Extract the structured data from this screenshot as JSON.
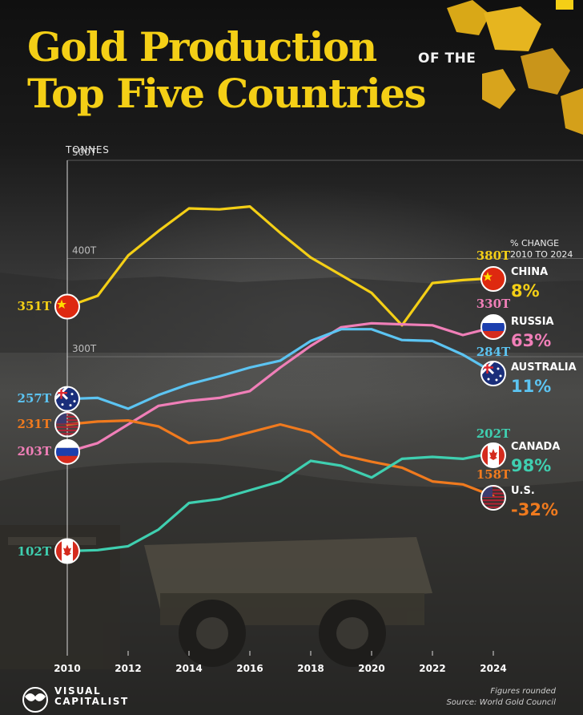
{
  "header": {
    "title_line1": "Gold Production",
    "title_line2": "Top Five Countries",
    "title_connector": "OF THE"
  },
  "unit_label": "TONNES",
  "pct_header": [
    "% CHANGE",
    "2010 TO 2024"
  ],
  "footnote": [
    "Figures rounded",
    "Source: World Gold Council"
  ],
  "brand": {
    "line1": "VISUAL",
    "line2": "CAPITALIST"
  },
  "chart_data": {
    "type": "line",
    "x": [
      2010,
      2011,
      2012,
      2013,
      2014,
      2015,
      2016,
      2017,
      2018,
      2019,
      2020,
      2021,
      2022,
      2023,
      2024
    ],
    "xticks": [
      2010,
      2012,
      2014,
      2016,
      2018,
      2020,
      2022,
      2024
    ],
    "xtick_labels": [
      "2010",
      "2012",
      "2014",
      "2016",
      "2018",
      "2020",
      "2022",
      "2024"
    ],
    "ylim": [
      100,
      500
    ],
    "yticks": [
      300,
      400,
      500
    ],
    "ytick_labels": [
      "300T",
      "400T",
      "500T"
    ],
    "grid": true,
    "series": [
      {
        "name": "CHINA",
        "color": "#f4cf16",
        "flag": "china-flag",
        "values": [
          351,
          362,
          403,
          428,
          451,
          450,
          453,
          426,
          401,
          383,
          365,
          332,
          375,
          378,
          380
        ],
        "start_label": "351T",
        "end_label": "380T",
        "change": "8%"
      },
      {
        "name": "RUSSIA",
        "color": "#f07fb8",
        "flag": "russia-flag",
        "values": [
          203,
          212,
          231,
          250,
          255,
          258,
          265,
          289,
          311,
          330,
          334,
          333,
          332,
          322,
          330
        ],
        "start_label": "203T",
        "end_label": "330T",
        "change": "63%"
      },
      {
        "name": "AUSTRALIA",
        "color": "#5cc4f2",
        "flag": "australia-flag",
        "values": [
          257,
          258,
          247,
          261,
          272,
          280,
          289,
          296,
          316,
          328,
          328,
          317,
          316,
          302,
          284
        ],
        "start_label": "257T",
        "end_label": "284T",
        "change": "11%"
      },
      {
        "name": "U.S.",
        "color": "#f07a1e",
        "flag": "us-flag",
        "values": [
          231,
          234,
          235,
          229,
          212,
          215,
          223,
          231,
          223,
          200,
          193,
          187,
          173,
          170,
          158
        ],
        "start_label": "231T",
        "end_label": "158T",
        "change": "-32%"
      },
      {
        "name": "CANADA",
        "color": "#3fcfb0",
        "flag": "canada-flag",
        "values": [
          102,
          103,
          107,
          124,
          151,
          155,
          164,
          173,
          194,
          189,
          177,
          196,
          198,
          196,
          202
        ],
        "start_label": "102T",
        "end_label": "202T",
        "change": "98%"
      }
    ]
  }
}
